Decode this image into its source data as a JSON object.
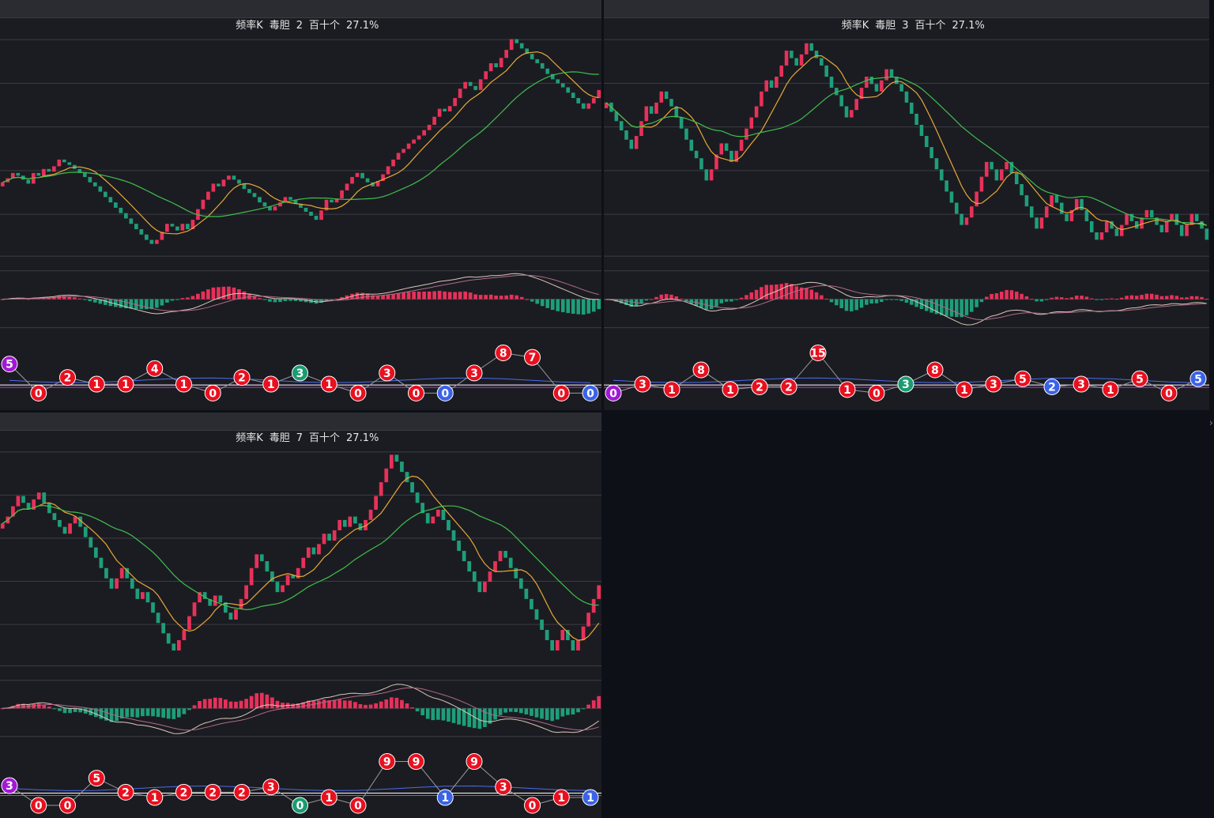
{
  "colors": {
    "up": "#e8315a",
    "down": "#1e9e7a",
    "ma_short": "#e8a838",
    "ma_long": "#3fbf4f",
    "grid": "#3c3d44",
    "ball_red": "#e8101f",
    "ball_green": "#1a9c70",
    "ball_blue": "#3b63e8",
    "ball_purple": "#a218d6"
  },
  "panels": [
    {
      "header": {
        "name": "频率K",
        "label": "毒胆",
        "value": "2",
        "unit": "百十个",
        "pct": "27.1%"
      },
      "chart_data": {
        "type": "candlestick",
        "closes": [
          0.63,
          0.66,
          0.7,
          0.68,
          0.65,
          0.62,
          0.7,
          0.68,
          0.73,
          0.71,
          0.75,
          0.8,
          0.78,
          0.76,
          0.73,
          0.7,
          0.67,
          0.63,
          0.6,
          0.56,
          0.52,
          0.48,
          0.44,
          0.4,
          0.36,
          0.32,
          0.28,
          0.24,
          0.2,
          0.17,
          0.2,
          0.26,
          0.32,
          0.3,
          0.27,
          0.32,
          0.28,
          0.35,
          0.43,
          0.5,
          0.56,
          0.62,
          0.6,
          0.65,
          0.68,
          0.65,
          0.62,
          0.58,
          0.55,
          0.52,
          0.48,
          0.45,
          0.42,
          0.45,
          0.48,
          0.52,
          0.5,
          0.47,
          0.44,
          0.41,
          0.38,
          0.35,
          0.42,
          0.5,
          0.48,
          0.51,
          0.57,
          0.62,
          0.67,
          0.7,
          0.66,
          0.63,
          0.6,
          0.64,
          0.69,
          0.75,
          0.8,
          0.85,
          0.88,
          0.92,
          0.95,
          0.98,
          1.02,
          1.06,
          1.12,
          1.18,
          1.16,
          1.2,
          1.26,
          1.33,
          1.38,
          1.35,
          1.32,
          1.4,
          1.46,
          1.52,
          1.49,
          1.56,
          1.62,
          1.7,
          1.67,
          1.63,
          1.59,
          1.55,
          1.52,
          1.48,
          1.44,
          1.4,
          1.37,
          1.34,
          1.3,
          1.26,
          1.22,
          1.18,
          1.22,
          1.26,
          1.32
        ]
      },
      "indicator": {
        "type": "macd-histogram"
      },
      "digits": {
        "balls": [
          {
            "v": "5",
            "c": "purple",
            "y": 0.75
          },
          {
            "v": "0",
            "c": "red",
            "y": 0.1
          },
          {
            "v": "2",
            "c": "red",
            "y": 0.45
          },
          {
            "v": "1",
            "c": "red",
            "y": 0.3
          },
          {
            "v": "1",
            "c": "red",
            "y": 0.3
          },
          {
            "v": "4",
            "c": "red",
            "y": 0.65
          },
          {
            "v": "1",
            "c": "red",
            "y": 0.3
          },
          {
            "v": "0",
            "c": "red",
            "y": 0.1
          },
          {
            "v": "2",
            "c": "red",
            "y": 0.45
          },
          {
            "v": "1",
            "c": "red",
            "y": 0.3
          },
          {
            "v": "3",
            "c": "green",
            "y": 0.55
          },
          {
            "v": "1",
            "c": "red",
            "y": 0.3
          },
          {
            "v": "0",
            "c": "red",
            "y": 0.1
          },
          {
            "v": "3",
            "c": "red",
            "y": 0.55
          },
          {
            "v": "0",
            "c": "red",
            "y": 0.1
          },
          {
            "v": "0",
            "c": "blue",
            "y": 0.1
          },
          {
            "v": "3",
            "c": "red",
            "y": 0.55
          },
          {
            "v": "8",
            "c": "red",
            "y": 1.0
          },
          {
            "v": "7",
            "c": "red",
            "y": 0.9
          },
          {
            "v": "0",
            "c": "red",
            "y": 0.1
          },
          {
            "v": "0",
            "c": "blue",
            "y": 0.1
          }
        ]
      }
    },
    {
      "header": {
        "name": "频率K",
        "label": "毒胆",
        "value": "3",
        "unit": "百十个",
        "pct": "27.1%"
      },
      "chart_data": {
        "type": "candlestick",
        "closes": [
          1.2,
          1.15,
          1.1,
          1.05,
          1.0,
          0.95,
          1.02,
          1.1,
          1.18,
          1.14,
          1.2,
          1.26,
          1.22,
          1.18,
          1.12,
          1.06,
          1.0,
          0.94,
          0.9,
          0.84,
          0.78,
          0.84,
          0.92,
          0.98,
          0.94,
          0.88,
          0.94,
          1.0,
          1.06,
          1.12,
          1.18,
          1.26,
          1.32,
          1.28,
          1.34,
          1.4,
          1.48,
          1.44,
          1.4,
          1.46,
          1.52,
          1.48,
          1.44,
          1.4,
          1.34,
          1.28,
          1.24,
          1.18,
          1.12,
          1.16,
          1.22,
          1.28,
          1.34,
          1.3,
          1.26,
          1.32,
          1.38,
          1.34,
          1.3,
          1.26,
          1.2,
          1.14,
          1.08,
          1.02,
          0.96,
          0.9,
          0.84,
          0.78,
          0.72,
          0.66,
          0.6,
          0.54,
          0.58,
          0.64,
          0.72,
          0.8,
          0.88,
          0.84,
          0.78,
          0.84,
          0.88,
          0.82,
          0.76,
          0.7,
          0.64,
          0.58,
          0.52,
          0.58,
          0.64,
          0.7,
          0.66,
          0.6,
          0.56,
          0.62,
          0.68,
          0.62,
          0.56,
          0.5,
          0.46,
          0.5,
          0.56,
          0.52,
          0.48,
          0.54,
          0.6,
          0.56,
          0.52,
          0.58,
          0.62,
          0.58,
          0.54,
          0.5,
          0.56,
          0.6,
          0.54,
          0.48,
          0.54,
          0.6,
          0.56,
          0.52,
          0.46
        ]
      },
      "indicator": {
        "type": "macd-histogram"
      },
      "digits": {
        "balls": [
          {
            "v": "0",
            "c": "purple",
            "y": 0.1
          },
          {
            "v": "3",
            "c": "red",
            "y": 0.3
          },
          {
            "v": "1",
            "c": "red",
            "y": 0.18
          },
          {
            "v": "8",
            "c": "red",
            "y": 0.62
          },
          {
            "v": "1",
            "c": "red",
            "y": 0.18
          },
          {
            "v": "2",
            "c": "red",
            "y": 0.24
          },
          {
            "v": "2",
            "c": "red",
            "y": 0.24
          },
          {
            "v": "15",
            "c": "red",
            "y": 1.0
          },
          {
            "v": "1",
            "c": "red",
            "y": 0.18
          },
          {
            "v": "0",
            "c": "red",
            "y": 0.1
          },
          {
            "v": "3",
            "c": "green",
            "y": 0.3
          },
          {
            "v": "8",
            "c": "red",
            "y": 0.62
          },
          {
            "v": "1",
            "c": "red",
            "y": 0.18
          },
          {
            "v": "3",
            "c": "red",
            "y": 0.3
          },
          {
            "v": "5",
            "c": "red",
            "y": 0.42
          },
          {
            "v": "2",
            "c": "blue",
            "y": 0.24
          },
          {
            "v": "3",
            "c": "red",
            "y": 0.3
          },
          {
            "v": "1",
            "c": "red",
            "y": 0.18
          },
          {
            "v": "5",
            "c": "red",
            "y": 0.42
          },
          {
            "v": "0",
            "c": "red",
            "y": 0.1
          },
          {
            "v": "5",
            "c": "blue",
            "y": 0.42
          }
        ]
      }
    },
    {
      "header": {
        "name": "频率K",
        "label": "毒胆",
        "value": "7",
        "unit": "百十个",
        "pct": "27.1%"
      },
      "chart_data": {
        "type": "candlestick",
        "closes": [
          1.02,
          1.06,
          1.12,
          1.18,
          1.14,
          1.1,
          1.16,
          1.2,
          1.14,
          1.08,
          1.04,
          1.0,
          0.96,
          1.02,
          1.06,
          1.0,
          0.94,
          0.88,
          0.82,
          0.76,
          0.7,
          0.64,
          0.7,
          0.76,
          0.7,
          0.64,
          0.58,
          0.62,
          0.56,
          0.5,
          0.44,
          0.38,
          0.32,
          0.28,
          0.34,
          0.4,
          0.48,
          0.56,
          0.62,
          0.58,
          0.54,
          0.6,
          0.56,
          0.5,
          0.46,
          0.52,
          0.58,
          0.66,
          0.76,
          0.84,
          0.8,
          0.74,
          0.68,
          0.62,
          0.66,
          0.72,
          0.7,
          0.76,
          0.82,
          0.88,
          0.84,
          0.9,
          0.96,
          0.92,
          0.98,
          1.04,
          1.0,
          1.06,
          1.02,
          0.98,
          1.04,
          1.1,
          1.18,
          1.26,
          1.34,
          1.42,
          1.38,
          1.32,
          1.26,
          1.2,
          1.14,
          1.08,
          1.02,
          1.06,
          1.1,
          1.04,
          0.98,
          0.92,
          0.86,
          0.8,
          0.74,
          0.68,
          0.62,
          0.68,
          0.74,
          0.8,
          0.86,
          0.82,
          0.76,
          0.7,
          0.64,
          0.58,
          0.52,
          0.46,
          0.4,
          0.34,
          0.28,
          0.34,
          0.4,
          0.34,
          0.28,
          0.34,
          0.42,
          0.5,
          0.58,
          0.66
        ]
      },
      "indicator": {
        "type": "macd-histogram"
      },
      "digits": {
        "balls": [
          {
            "v": "3",
            "c": "purple",
            "y": 0.45
          },
          {
            "v": "0",
            "c": "red",
            "y": 0.0
          },
          {
            "v": "0",
            "c": "red",
            "y": 0.0
          },
          {
            "v": "5",
            "c": "red",
            "y": 0.62
          },
          {
            "v": "2",
            "c": "red",
            "y": 0.3
          },
          {
            "v": "1",
            "c": "red",
            "y": 0.18
          },
          {
            "v": "2",
            "c": "red",
            "y": 0.3
          },
          {
            "v": "2",
            "c": "red",
            "y": 0.3
          },
          {
            "v": "2",
            "c": "red",
            "y": 0.3
          },
          {
            "v": "3",
            "c": "red",
            "y": 0.42
          },
          {
            "v": "0",
            "c": "green",
            "y": 0.0
          },
          {
            "v": "1",
            "c": "red",
            "y": 0.18
          },
          {
            "v": "0",
            "c": "red",
            "y": 0.0
          },
          {
            "v": "9",
            "c": "red",
            "y": 1.0
          },
          {
            "v": "9",
            "c": "red",
            "y": 1.0
          },
          {
            "v": "1",
            "c": "blue",
            "y": 0.18
          },
          {
            "v": "9",
            "c": "red",
            "y": 1.0
          },
          {
            "v": "3",
            "c": "red",
            "y": 0.42
          },
          {
            "v": "0",
            "c": "red",
            "y": 0.0
          },
          {
            "v": "1",
            "c": "red",
            "y": 0.18
          },
          {
            "v": "1",
            "c": "blue",
            "y": 0.18
          }
        ]
      }
    }
  ]
}
